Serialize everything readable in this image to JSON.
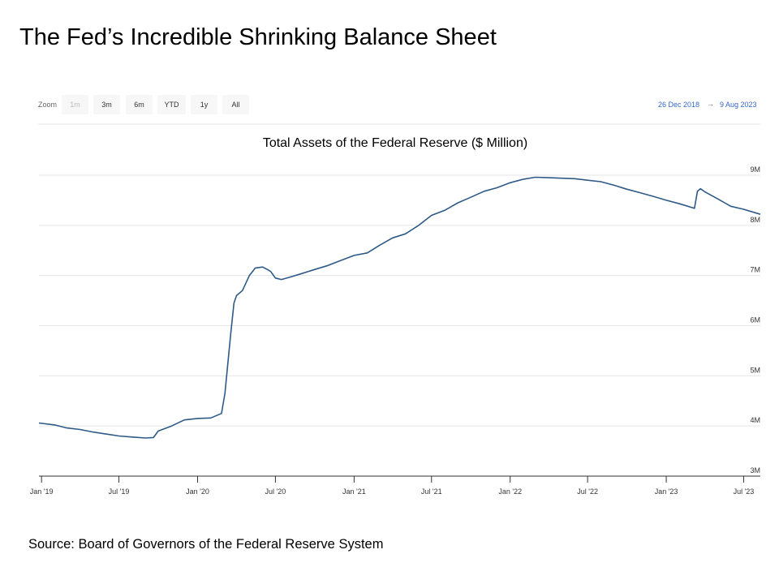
{
  "slide": {
    "title": "The Fed’s Incredible Shrinking Balance Sheet",
    "source": "Source: Board of Governors of the Federal Reserve System"
  },
  "toolbar": {
    "zoom_label": "Zoom",
    "buttons": [
      "1m",
      "3m",
      "6m",
      "YTD",
      "1y",
      "All"
    ],
    "range_from": "26 Dec 2018",
    "range_arrow": "→",
    "range_to": "9 Aug 2023"
  },
  "colors": {
    "line": "#2e5a87",
    "grid": "#e6e6e6",
    "range_link": "#3366cc"
  },
  "chart_data": {
    "type": "line",
    "title": "Total Assets of the Federal Reserve ($ Million)",
    "xlabel": "",
    "ylabel": "",
    "ylim": [
      3000000,
      9000000
    ],
    "xlim": [
      "2018-12-26",
      "2023-08-09"
    ],
    "yticks": [
      3000000,
      4000000,
      5000000,
      6000000,
      7000000,
      8000000,
      9000000
    ],
    "ytick_labels": [
      "3M",
      "4M",
      "5M",
      "6M",
      "7M",
      "8M",
      "9M"
    ],
    "xticks": [
      "2019-01-01",
      "2019-07-01",
      "2020-01-01",
      "2020-07-01",
      "2021-01-01",
      "2021-07-01",
      "2022-01-01",
      "2022-07-01",
      "2023-01-01",
      "2023-07-01"
    ],
    "xtick_labels": [
      "Jan '19",
      "Jul '19",
      "Jan '20",
      "Jul '20",
      "Jan '21",
      "Jul '21",
      "Jan '22",
      "Jul '22",
      "Jan '23",
      "Jul '23"
    ],
    "grid": true,
    "legend": "none",
    "series": [
      {
        "x": [
          "2018-12-26",
          "2019-02-01",
          "2019-03-01",
          "2019-04-01",
          "2019-05-01",
          "2019-06-01",
          "2019-07-01",
          "2019-08-01",
          "2019-09-01",
          "2019-09-20",
          "2019-10-01",
          "2019-11-01",
          "2019-12-01",
          "2020-01-01",
          "2020-02-01",
          "2020-02-26",
          "2020-03-05",
          "2020-03-18",
          "2020-03-26",
          "2020-04-01",
          "2020-04-15",
          "2020-05-01",
          "2020-05-15",
          "2020-06-01",
          "2020-06-10",
          "2020-06-20",
          "2020-07-01",
          "2020-07-15",
          "2020-08-01",
          "2020-09-01",
          "2020-10-01",
          "2020-11-01",
          "2020-12-01",
          "2021-01-01",
          "2021-02-01",
          "2021-03-01",
          "2021-04-01",
          "2021-05-01",
          "2021-06-01",
          "2021-07-01",
          "2021-08-01",
          "2021-09-01",
          "2021-10-01",
          "2021-11-01",
          "2021-12-01",
          "2022-01-01",
          "2022-02-01",
          "2022-03-01",
          "2022-04-01",
          "2022-05-01",
          "2022-06-01",
          "2022-07-01",
          "2022-08-01",
          "2022-09-01",
          "2022-10-01",
          "2022-11-01",
          "2022-12-01",
          "2023-01-01",
          "2023-02-01",
          "2023-03-08",
          "2023-03-15",
          "2023-03-22",
          "2023-04-01",
          "2023-05-01",
          "2023-06-01",
          "2023-07-01",
          "2023-08-09"
        ],
        "values": [
          4060000,
          4020000,
          3960000,
          3930000,
          3880000,
          3840000,
          3800000,
          3780000,
          3760000,
          3770000,
          3900000,
          4000000,
          4120000,
          4150000,
          4160000,
          4250000,
          4650000,
          5800000,
          6450000,
          6600000,
          6700000,
          7000000,
          7150000,
          7170000,
          7130000,
          7080000,
          6950000,
          6920000,
          6960000,
          7040000,
          7120000,
          7200000,
          7300000,
          7400000,
          7450000,
          7600000,
          7750000,
          7830000,
          8000000,
          8200000,
          8300000,
          8450000,
          8560000,
          8680000,
          8750000,
          8850000,
          8920000,
          8960000,
          8950000,
          8940000,
          8930000,
          8900000,
          8870000,
          8800000,
          8720000,
          8650000,
          8580000,
          8500000,
          8430000,
          8340000,
          8680000,
          8730000,
          8670000,
          8530000,
          8380000,
          8320000,
          8220000
        ]
      }
    ]
  }
}
